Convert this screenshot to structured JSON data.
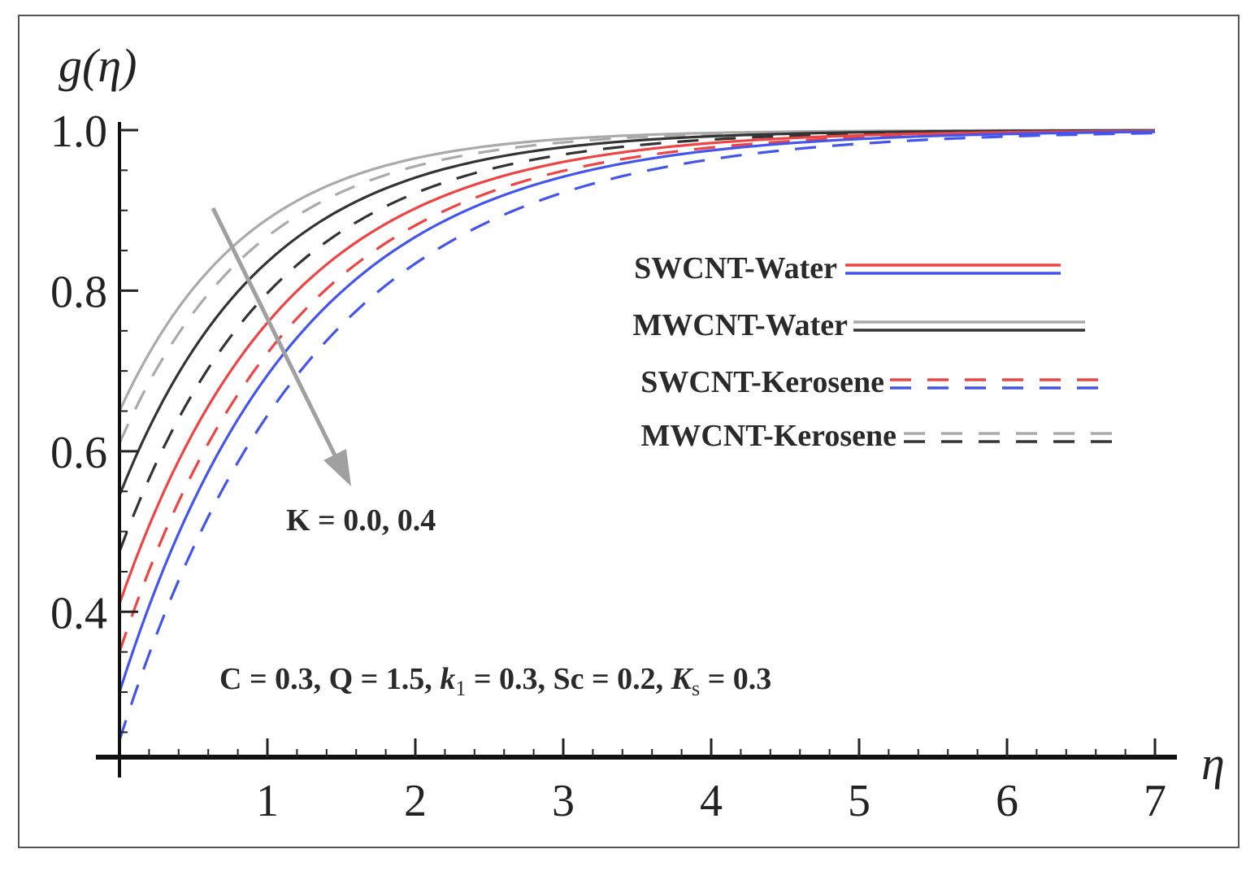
{
  "chart_data": {
    "type": "line",
    "xlabel": "η",
    "ylabel": "g(η)",
    "xlim": [
      0,
      7
    ],
    "ylim": [
      0.22,
      1.0
    ],
    "x_ticks": [
      1,
      2,
      3,
      4,
      5,
      6,
      7
    ],
    "x_tick_labels": [
      "1",
      "2",
      "3",
      "4",
      "5",
      "6",
      "7"
    ],
    "y_ticks": [
      0.4,
      0.6,
      0.8,
      1.0
    ],
    "y_tick_labels": [
      "0.4",
      "0.6",
      "0.8",
      "1.0"
    ],
    "legend": [
      {
        "label": "SWCNT-Water",
        "style": "solid",
        "colors": [
          "#ee4444",
          "#4455ee"
        ]
      },
      {
        "label": "MWCNT-Water",
        "style": "solid",
        "colors": [
          "#aaaaaa",
          "#333333"
        ]
      },
      {
        "label": "SWCNT-Kerosene",
        "style": "dashed",
        "colors": [
          "#ee4444",
          "#4455ee"
        ]
      },
      {
        "label": "MWCNT-Kerosene",
        "style": "dashed",
        "colors": [
          "#aaaaaa",
          "#333333"
        ]
      }
    ],
    "series": [
      {
        "name": "MWCNT-Water, K = 0.0",
        "color": "#aaaaaa",
        "dash": "solid",
        "g0": 0.65,
        "decay": 1.15
      },
      {
        "name": "MWCNT-Kerosene, K = 0.0",
        "color": "#aaaaaa",
        "dash": "dashed",
        "g0": 0.61,
        "decay": 1.08
      },
      {
        "name": "MWCNT-Water, K = 0.4",
        "color": "#333333",
        "dash": "solid",
        "g0": 0.545,
        "decay": 1.02
      },
      {
        "name": "MWCNT-Kerosene, K = 0.4",
        "color": "#333333",
        "dash": "dashed",
        "g0": 0.475,
        "decay": 0.95
      },
      {
        "name": "SWCNT-Water, K = 0.0",
        "color": "#ee4444",
        "dash": "solid",
        "g0": 0.41,
        "decay": 0.9
      },
      {
        "name": "SWCNT-Kerosene, K = 0.0",
        "color": "#ee4444",
        "dash": "dashed",
        "g0": 0.35,
        "decay": 0.85
      },
      {
        "name": "SWCNT-Water, K = 0.4",
        "color": "#4455ee",
        "dash": "solid",
        "g0": 0.3,
        "decay": 0.83
      },
      {
        "name": "SWCNT-Kerosene, K = 0.4",
        "color": "#4455ee",
        "dash": "dashed",
        "g0": 0.24,
        "decay": 0.76
      }
    ],
    "annotations": {
      "arrow_label": "K = 0.0, 0.4",
      "parameters": "C = 0.3, Q = 1.5, k1 = 0.3, Sc = 0.2, Ks = 0.3"
    },
    "params_parts": {
      "p1": "C = 0.3, Q = 1.5, ",
      "p2_sym": "k",
      "p2_sub": "1",
      "p3": " = 0.3, Sc = 0.2, ",
      "p4_sym": "K",
      "p4_sub": "s",
      "p5": " = 0.3"
    }
  }
}
